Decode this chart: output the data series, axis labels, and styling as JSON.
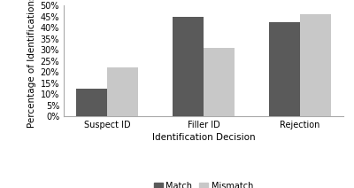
{
  "categories": [
    "Suspect ID",
    "Filler ID",
    "Rejection"
  ],
  "match_values": [
    0.125,
    0.45,
    0.425
  ],
  "mismatch_values": [
    0.22,
    0.31,
    0.46
  ],
  "match_color": "#5a5a5a",
  "mismatch_color": "#c8c8c8",
  "xlabel": "Identification Decision",
  "ylabel": "Percentage of Identifications",
  "ylim": [
    0,
    0.5
  ],
  "yticks": [
    0.0,
    0.05,
    0.1,
    0.15,
    0.2,
    0.25,
    0.3,
    0.35,
    0.4,
    0.45,
    0.5
  ],
  "ytick_labels": [
    "0%",
    "5%",
    "10%",
    "15%",
    "20%",
    "25%",
    "30%",
    "35%",
    "40%",
    "45%",
    "50%"
  ],
  "legend_match_label": "Match",
  "legend_mismatch_label": "Mismatch",
  "bar_width": 0.32,
  "background_color": "#ffffff",
  "axis_fontsize": 7.5,
  "tick_fontsize": 7,
  "legend_fontsize": 7,
  "xlabel_fontsize": 7.5
}
